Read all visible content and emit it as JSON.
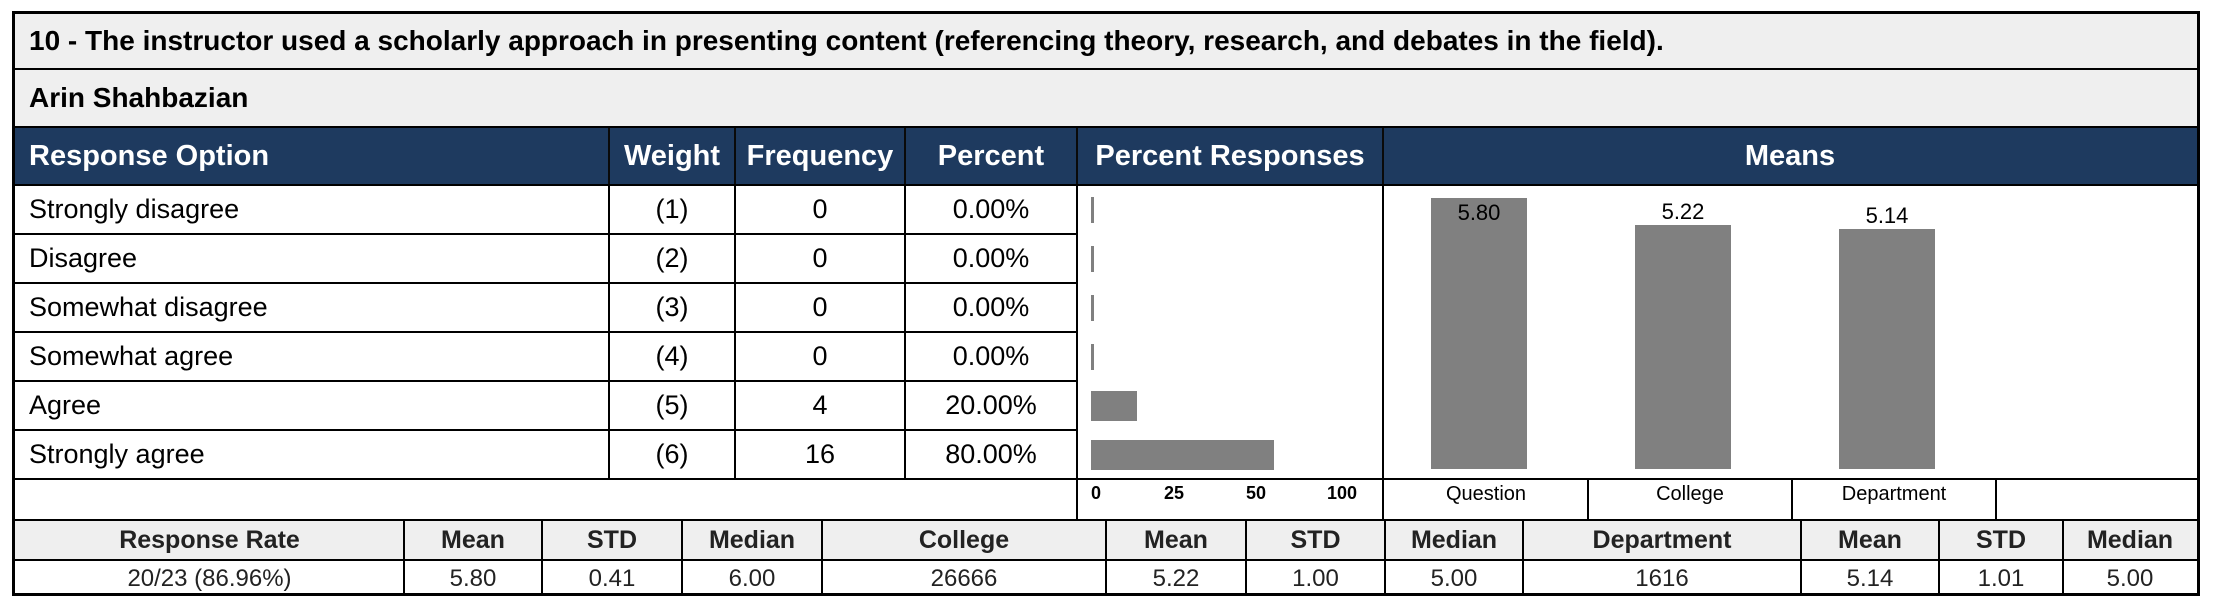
{
  "question_title": "10 - The instructor used a scholarly approach in presenting content (referencing theory, research, and debates in the field).",
  "instructor": "Arin Shahbazian",
  "headers": {
    "response_option": "Response Option",
    "weight": "Weight",
    "frequency": "Frequency",
    "percent": "Percent",
    "percent_responses": "Percent Responses",
    "means": "Means"
  },
  "rows": [
    {
      "option": "Strongly disagree",
      "weight": "(1)",
      "frequency": "0",
      "percent": "0.00%",
      "pct_value": 0
    },
    {
      "option": "Disagree",
      "weight": "(2)",
      "frequency": "0",
      "percent": "0.00%",
      "pct_value": 0
    },
    {
      "option": "Somewhat disagree",
      "weight": "(3)",
      "frequency": "0",
      "percent": "0.00%",
      "pct_value": 0
    },
    {
      "option": "Somewhat agree",
      "weight": "(4)",
      "frequency": "0",
      "percent": "0.00%",
      "pct_value": 0
    },
    {
      "option": "Agree",
      "weight": "(5)",
      "frequency": "4",
      "percent": "20.00%",
      "pct_value": 20
    },
    {
      "option": "Strongly agree",
      "weight": "(6)",
      "frequency": "16",
      "percent": "80.00%",
      "pct_value": 80
    }
  ],
  "percent_axis_ticks": [
    "0",
    "25",
    "50",
    "100"
  ],
  "chart_data": {
    "type": "bar",
    "categories": [
      "Question",
      "College",
      "Department"
    ],
    "values": [
      5.8,
      5.22,
      5.14
    ],
    "value_labels": [
      "5.80",
      "5.22",
      "5.14"
    ],
    "ylim": [
      0,
      6
    ]
  },
  "summary": {
    "headers": [
      "Response Rate",
      "Mean",
      "STD",
      "Median",
      "College",
      "Mean",
      "STD",
      "Median",
      "Department",
      "Mean",
      "STD",
      "Median"
    ],
    "values": [
      "20/23 (86.96%)",
      "5.80",
      "0.41",
      "6.00",
      "26666",
      "5.22",
      "1.00",
      "5.00",
      "1616",
      "5.14",
      "1.01",
      "5.00"
    ]
  },
  "colors": {
    "header_bg": "#1e3a5f",
    "bar": "#808080",
    "light_bg": "#efefef"
  }
}
